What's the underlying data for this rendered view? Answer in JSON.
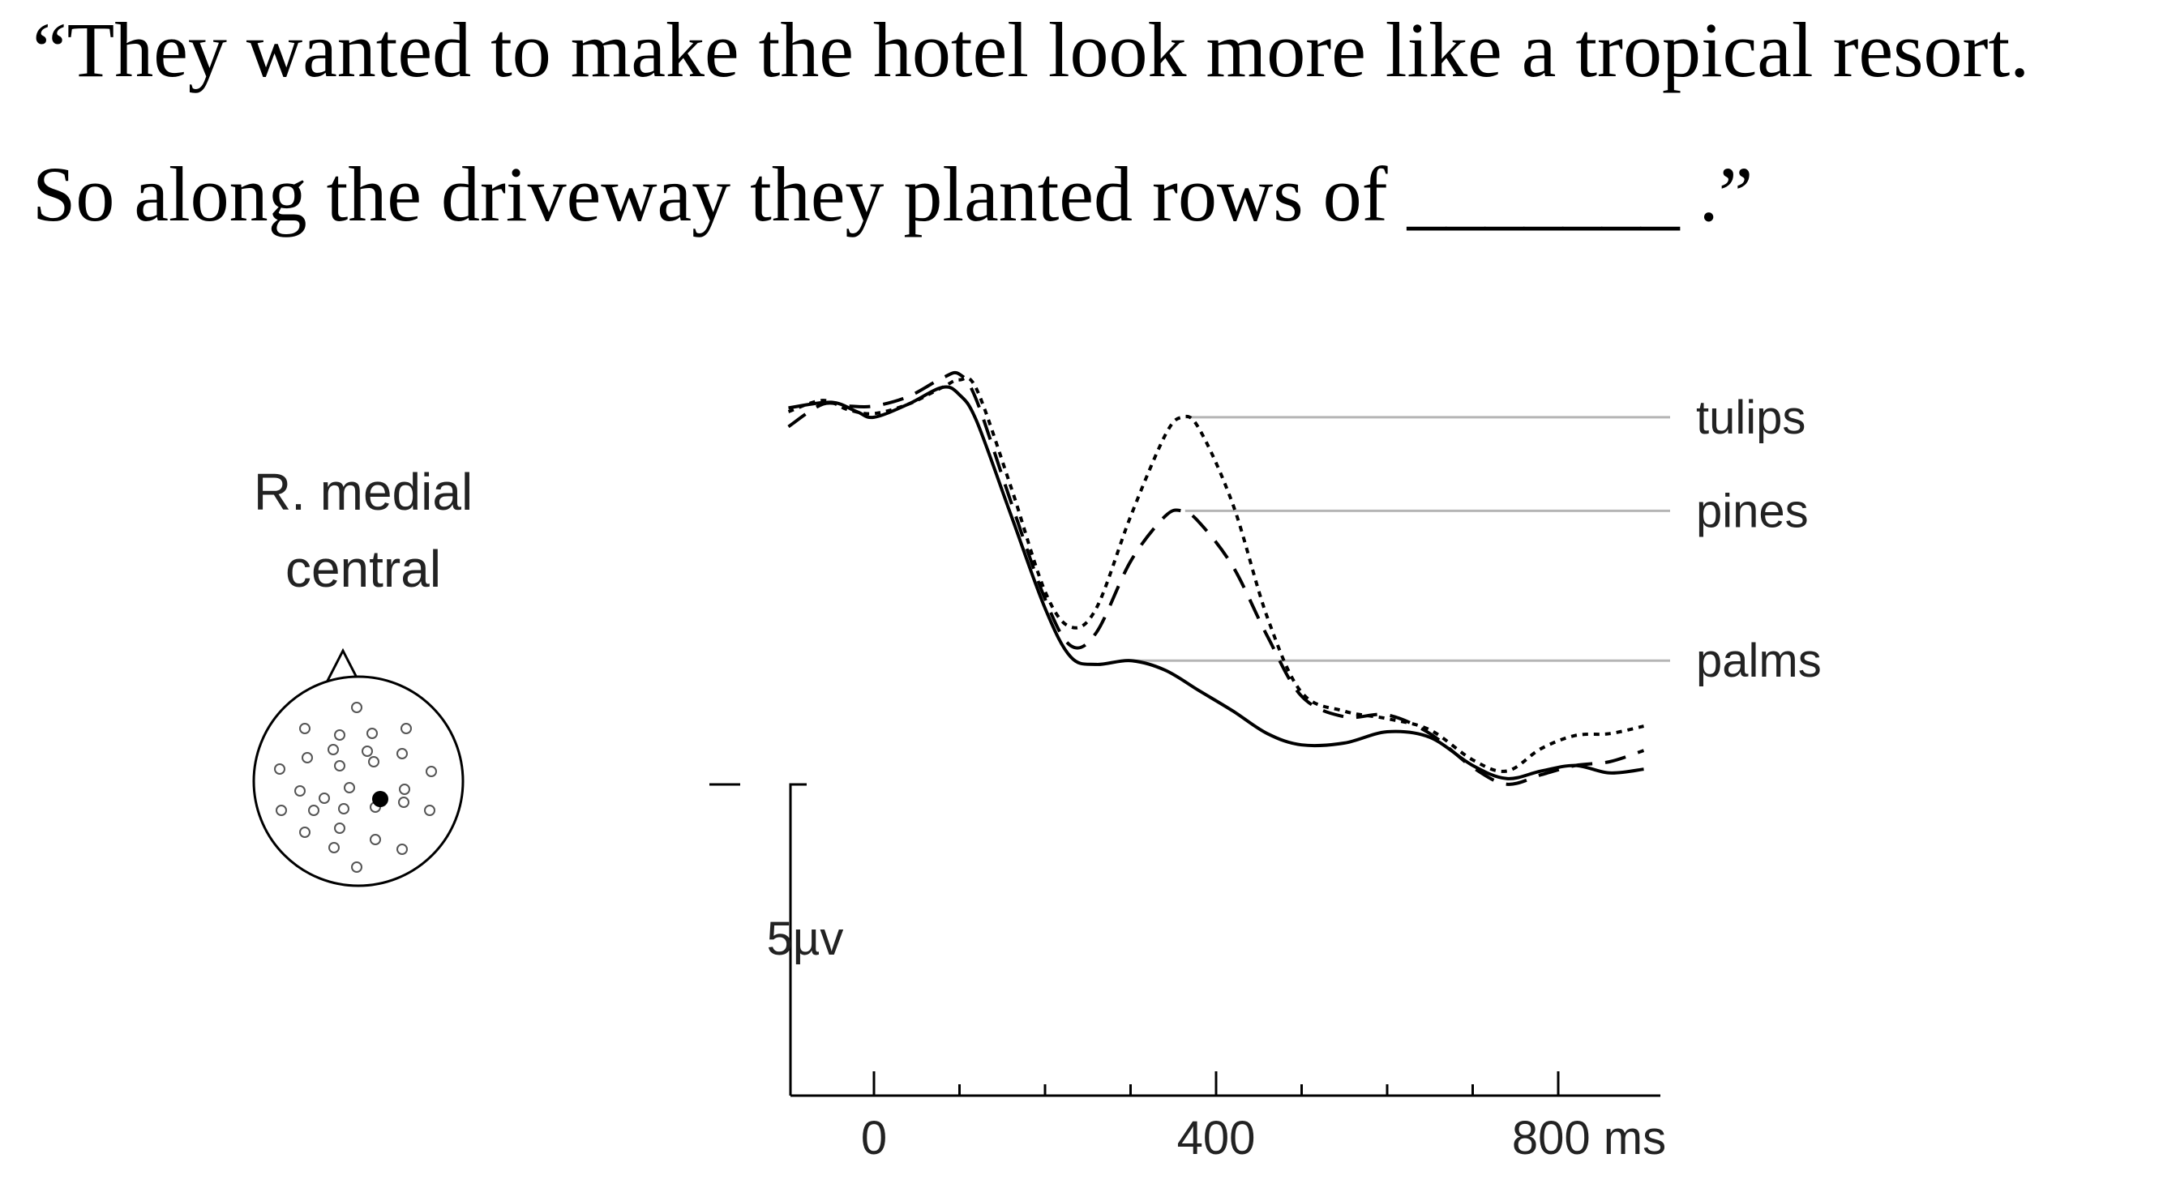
{
  "sentence": {
    "line1": "“They wanted to make the hotel look more like a tropical resort.",
    "line2": "So along the driveway they planted rows of _______ .”"
  },
  "electrode": {
    "label_line1": "R. medial",
    "label_line2": "central"
  },
  "chart_data": {
    "type": "line",
    "xlim": [
      -100,
      900
    ],
    "x_ticks": [
      {
        "value": 0,
        "label": "0"
      },
      {
        "value": 400,
        "label": "400"
      },
      {
        "value": 800,
        "label": "800 ms"
      }
    ],
    "x_minor_ticks": [
      100,
      200,
      300,
      500,
      600,
      700
    ],
    "scale_bar": {
      "label": "5µv",
      "amplitude_uv": 5
    },
    "series": [
      {
        "name": "palms",
        "style": "solid",
        "color": "#000000",
        "x": [
          -100,
          -50,
          -20,
          0,
          40,
          80,
          100,
          120,
          160,
          200,
          230,
          260,
          300,
          340,
          380,
          420,
          460,
          500,
          550,
          600,
          650,
          700,
          740,
          780,
          820,
          860,
          900
        ],
        "y": [
          0.2,
          0.5,
          0.0,
          -0.3,
          0.4,
          1.3,
          0.9,
          -0.5,
          -5.5,
          -10.5,
          -13.1,
          -13.5,
          -13.3,
          -13.8,
          -14.9,
          -16.0,
          -17.2,
          -17.8,
          -17.7,
          -17.1,
          -17.4,
          -18.9,
          -19.6,
          -19.2,
          -18.9,
          -19.3,
          -19.1
        ]
      },
      {
        "name": "pines",
        "style": "dashed",
        "color": "#000000",
        "x": [
          -100,
          -60,
          -30,
          0,
          40,
          80,
          100,
          120,
          160,
          200,
          230,
          260,
          300,
          340,
          360,
          380,
          420,
          460,
          500,
          550,
          600,
          650,
          700,
          740,
          780,
          820,
          860,
          900
        ],
        "y": [
          -0.8,
          0.4,
          0.3,
          0.3,
          0.8,
          1.8,
          2.0,
          0.6,
          -4.8,
          -10.0,
          -12.5,
          -11.8,
          -8.0,
          -5.6,
          -5.3,
          -5.9,
          -8.3,
          -12.0,
          -15.2,
          -16.3,
          -16.2,
          -17.2,
          -19.0,
          -19.9,
          -19.4,
          -18.9,
          -18.7,
          -18.1
        ]
      },
      {
        "name": "tulips",
        "style": "dotted",
        "color": "#000000",
        "x": [
          -100,
          -60,
          -30,
          0,
          40,
          80,
          100,
          120,
          160,
          200,
          230,
          260,
          300,
          340,
          360,
          380,
          420,
          460,
          500,
          550,
          600,
          650,
          700,
          740,
          780,
          820,
          860,
          900
        ],
        "y": [
          0.0,
          0.6,
          0.1,
          -0.1,
          0.4,
          1.3,
          1.7,
          1.2,
          -4.0,
          -9.6,
          -11.5,
          -10.5,
          -5.6,
          -1.3,
          -0.3,
          -0.9,
          -5.0,
          -11.0,
          -15.0,
          -16.0,
          -16.4,
          -17.0,
          -18.6,
          -19.2,
          -18.0,
          -17.3,
          -17.2,
          -16.8
        ]
      }
    ]
  }
}
